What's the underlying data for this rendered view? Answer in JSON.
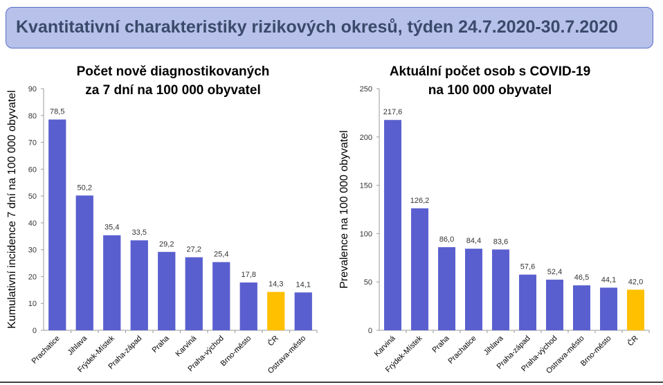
{
  "header": {
    "title": "Kvantitativní charakteristiky rizikových okresů, týden 24.7.2020-30.7.2020"
  },
  "colors": {
    "bar": "#5a5fcf",
    "highlight": "#ffc000",
    "banner": "#b7c1ea"
  },
  "chart_data": [
    {
      "type": "bar",
      "title": [
        "Počet nově diagnostikovaných",
        "za 7 dní na 100 000 obyvatel"
      ],
      "xlabel": "",
      "ylabel": "Kumulativní incidence 7 dní na 100 000 obyvatel",
      "ylim": [
        0,
        90
      ],
      "yticks": [
        0,
        10,
        20,
        30,
        40,
        50,
        60,
        70,
        80,
        90
      ],
      "categories": [
        "Prachatice",
        "Jihlava",
        "Frýdek-Místek",
        "Praha-západ",
        "Praha",
        "Karviná",
        "Praha-východ",
        "Brno-město",
        "ČR",
        "Ostrava-město"
      ],
      "values": [
        78.5,
        50.2,
        35.4,
        33.5,
        29.2,
        27.2,
        25.4,
        17.8,
        14.3,
        14.1
      ],
      "value_labels": [
        "78,5",
        "50,2",
        "35,4",
        "33,5",
        "29,2",
        "27,2",
        "25,4",
        "17,8",
        "14,3",
        "14,1"
      ],
      "highlight": "ČR",
      "grid": false
    },
    {
      "type": "bar",
      "title": [
        "Aktuální počet osob s COVID-19",
        "na 100 000 obyvatel"
      ],
      "xlabel": "",
      "ylabel": "Prevalence na 100 000 obyvatel",
      "ylim": [
        0,
        250
      ],
      "yticks": [
        0,
        50,
        100,
        150,
        200,
        250
      ],
      "categories": [
        "Karviná",
        "Frýdek-Místek",
        "Praha",
        "Prachatice",
        "Jihlava",
        "Praha-západ",
        "Praha-východ",
        "Ostrava-město",
        "Brno-město",
        "ČR"
      ],
      "values": [
        217.6,
        126.2,
        86.0,
        84.4,
        83.6,
        57.6,
        52.4,
        46.5,
        44.1,
        42.0
      ],
      "value_labels": [
        "217,6",
        "126,2",
        "86,0",
        "84,4",
        "83,6",
        "57,6",
        "52,4",
        "46,5",
        "44,1",
        "42,0"
      ],
      "highlight": "ČR",
      "grid": false
    }
  ]
}
